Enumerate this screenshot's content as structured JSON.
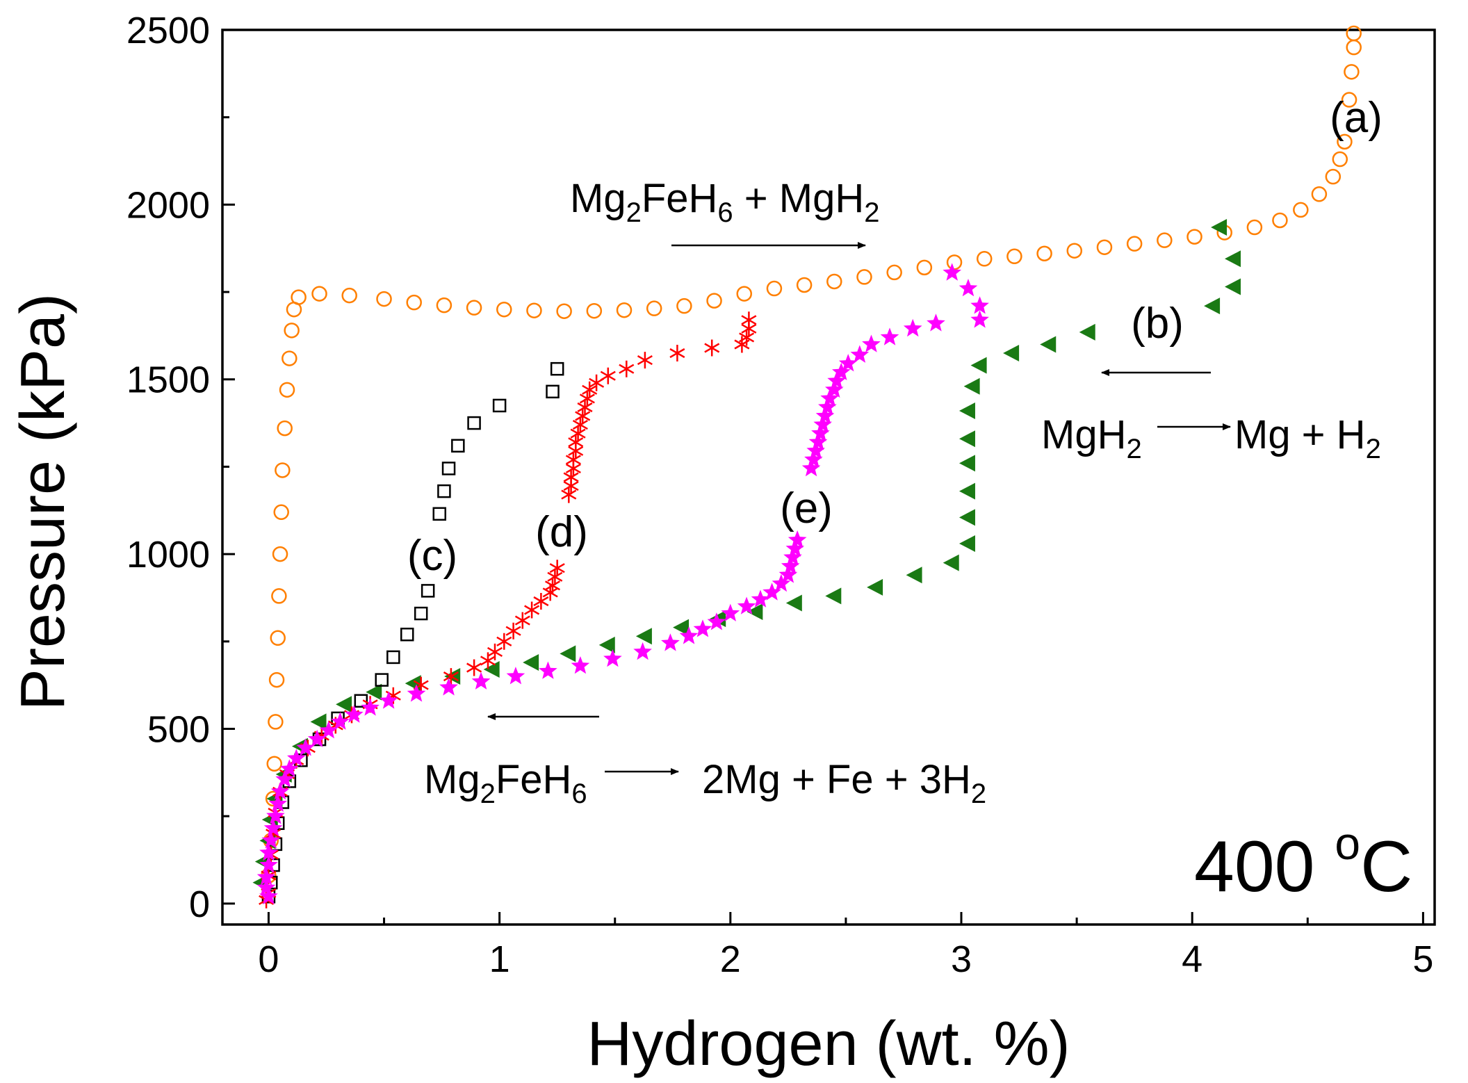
{
  "chart_data": {
    "type": "scatter",
    "xlabel": "Hydrogen (wt. %)",
    "ylabel": "Pressure (kPa)",
    "xlim": [
      -0.2,
      5.05
    ],
    "ylim": [
      -60,
      2500
    ],
    "xticks": [
      0,
      1,
      2,
      3,
      4,
      5
    ],
    "yticks": [
      0,
      500,
      1000,
      1500,
      2000,
      2500
    ],
    "grid": false,
    "temperature": {
      "value": "400 ",
      "sup": "o",
      "unit": "C"
    },
    "series": [
      {
        "name": "(a)",
        "marker": "circle",
        "color": "#ff7f00",
        "filled": false,
        "points": [
          [
            0.0,
            80
          ],
          [
            0.01,
            180
          ],
          [
            0.02,
            300
          ],
          [
            0.025,
            400
          ],
          [
            0.03,
            520
          ],
          [
            0.035,
            640
          ],
          [
            0.04,
            760
          ],
          [
            0.045,
            880
          ],
          [
            0.05,
            1000
          ],
          [
            0.055,
            1120
          ],
          [
            0.06,
            1240
          ],
          [
            0.07,
            1360
          ],
          [
            0.08,
            1470
          ],
          [
            0.09,
            1560
          ],
          [
            0.1,
            1640
          ],
          [
            0.11,
            1700
          ],
          [
            0.13,
            1735
          ],
          [
            0.22,
            1745
          ],
          [
            0.35,
            1740
          ],
          [
            0.5,
            1730
          ],
          [
            0.63,
            1720
          ],
          [
            0.76,
            1712
          ],
          [
            0.89,
            1705
          ],
          [
            1.02,
            1700
          ],
          [
            1.15,
            1697
          ],
          [
            1.28,
            1695
          ],
          [
            1.41,
            1696
          ],
          [
            1.54,
            1698
          ],
          [
            1.67,
            1703
          ],
          [
            1.8,
            1710
          ],
          [
            1.93,
            1725
          ],
          [
            2.06,
            1745
          ],
          [
            2.19,
            1760
          ],
          [
            2.32,
            1770
          ],
          [
            2.45,
            1780
          ],
          [
            2.58,
            1793
          ],
          [
            2.71,
            1806
          ],
          [
            2.84,
            1820
          ],
          [
            2.97,
            1835
          ],
          [
            3.1,
            1845
          ],
          [
            3.23,
            1852
          ],
          [
            3.36,
            1860
          ],
          [
            3.49,
            1868
          ],
          [
            3.62,
            1878
          ],
          [
            3.75,
            1888
          ],
          [
            3.88,
            1898
          ],
          [
            4.01,
            1908
          ],
          [
            4.14,
            1920
          ],
          [
            4.27,
            1935
          ],
          [
            4.38,
            1955
          ],
          [
            4.47,
            1985
          ],
          [
            4.55,
            2030
          ],
          [
            4.61,
            2080
          ],
          [
            4.64,
            2130
          ],
          [
            4.66,
            2180
          ],
          [
            4.68,
            2300
          ],
          [
            4.69,
            2380
          ],
          [
            4.7,
            2450
          ],
          [
            4.7,
            2490
          ]
        ]
      },
      {
        "name": "(b)",
        "marker": "triangle-left",
        "color": "#1a7a14",
        "filled": true,
        "points": [
          [
            4.12,
            1935
          ],
          [
            4.18,
            1845
          ],
          [
            4.18,
            1765
          ],
          [
            4.09,
            1710
          ],
          [
            3.55,
            1635
          ],
          [
            3.38,
            1600
          ],
          [
            3.22,
            1575
          ],
          [
            3.08,
            1540
          ],
          [
            3.05,
            1480
          ],
          [
            3.03,
            1410
          ],
          [
            3.03,
            1330
          ],
          [
            3.03,
            1260
          ],
          [
            3.03,
            1180
          ],
          [
            3.03,
            1105
          ],
          [
            3.03,
            1030
          ],
          [
            2.96,
            975
          ],
          [
            2.8,
            940
          ],
          [
            2.63,
            905
          ],
          [
            2.45,
            880
          ],
          [
            2.28,
            860
          ],
          [
            2.11,
            835
          ],
          [
            1.95,
            815
          ],
          [
            1.79,
            790
          ],
          [
            1.63,
            765
          ],
          [
            1.47,
            740
          ],
          [
            1.3,
            715
          ],
          [
            1.14,
            690
          ],
          [
            0.97,
            670
          ],
          [
            0.8,
            650
          ],
          [
            0.63,
            630
          ],
          [
            0.46,
            605
          ],
          [
            0.33,
            570
          ],
          [
            0.22,
            520
          ],
          [
            0.14,
            450
          ],
          [
            0.07,
            370
          ],
          [
            0.03,
            300
          ],
          [
            0.01,
            240
          ],
          [
            0.0,
            180
          ],
          [
            -0.02,
            120
          ],
          [
            -0.03,
            60
          ]
        ]
      },
      {
        "name": "(c)",
        "marker": "square",
        "color": "#000000",
        "filled": false,
        "points": [
          [
            1.25,
            1530
          ],
          [
            1.23,
            1465
          ],
          [
            1.0,
            1425
          ],
          [
            0.89,
            1375
          ],
          [
            0.82,
            1310
          ],
          [
            0.78,
            1245
          ],
          [
            0.76,
            1180
          ],
          [
            0.74,
            1115
          ],
          [
            0.69,
            895
          ],
          [
            0.66,
            830
          ],
          [
            0.6,
            770
          ],
          [
            0.54,
            705
          ],
          [
            0.49,
            640
          ],
          [
            0.4,
            580
          ],
          [
            0.3,
            530
          ],
          [
            0.22,
            470
          ],
          [
            0.14,
            410
          ],
          [
            0.09,
            350
          ],
          [
            0.06,
            290
          ],
          [
            0.04,
            230
          ],
          [
            0.03,
            170
          ],
          [
            0.02,
            110
          ],
          [
            0.01,
            60
          ],
          [
            0.0,
            20
          ]
        ]
      },
      {
        "name": "(d)",
        "marker": "star6",
        "color": "#ff0000",
        "filled": false,
        "points": [
          [
            2.08,
            1670
          ],
          [
            2.08,
            1645
          ],
          [
            2.07,
            1620
          ],
          [
            2.05,
            1600
          ],
          [
            1.92,
            1590
          ],
          [
            1.77,
            1575
          ],
          [
            1.63,
            1555
          ],
          [
            1.55,
            1530
          ],
          [
            1.47,
            1510
          ],
          [
            1.42,
            1490
          ],
          [
            1.39,
            1470
          ],
          [
            1.38,
            1445
          ],
          [
            1.37,
            1420
          ],
          [
            1.36,
            1395
          ],
          [
            1.35,
            1370
          ],
          [
            1.34,
            1345
          ],
          [
            1.33,
            1320
          ],
          [
            1.33,
            1295
          ],
          [
            1.32,
            1270
          ],
          [
            1.32,
            1245
          ],
          [
            1.31,
            1220
          ],
          [
            1.31,
            1195
          ],
          [
            1.3,
            1170
          ],
          [
            1.25,
            960
          ],
          [
            1.24,
            935
          ],
          [
            1.23,
            910
          ],
          [
            1.22,
            890
          ],
          [
            1.18,
            865
          ],
          [
            1.14,
            840
          ],
          [
            1.1,
            810
          ],
          [
            1.06,
            780
          ],
          [
            1.02,
            750
          ],
          [
            0.98,
            720
          ],
          [
            0.95,
            695
          ],
          [
            0.89,
            675
          ],
          [
            0.79,
            650
          ],
          [
            0.66,
            625
          ],
          [
            0.54,
            595
          ],
          [
            0.44,
            570
          ],
          [
            0.36,
            540
          ],
          [
            0.29,
            510
          ],
          [
            0.23,
            480
          ],
          [
            0.17,
            445
          ],
          [
            0.12,
            410
          ],
          [
            0.08,
            370
          ],
          [
            0.05,
            320
          ],
          [
            0.03,
            260
          ],
          [
            0.02,
            200
          ],
          [
            0.01,
            140
          ],
          [
            0.0,
            80
          ],
          [
            0.0,
            30
          ],
          [
            -0.01,
            10
          ]
        ]
      },
      {
        "name": "(e)",
        "marker": "star5",
        "color": "#ff00ff",
        "filled": true,
        "points": [
          [
            2.96,
            1805
          ],
          [
            3.03,
            1760
          ],
          [
            3.08,
            1710
          ],
          [
            3.08,
            1670
          ],
          [
            2.89,
            1660
          ],
          [
            2.79,
            1645
          ],
          [
            2.69,
            1620
          ],
          [
            2.61,
            1600
          ],
          [
            2.56,
            1570
          ],
          [
            2.51,
            1545
          ],
          [
            2.48,
            1520
          ],
          [
            2.46,
            1495
          ],
          [
            2.45,
            1470
          ],
          [
            2.43,
            1445
          ],
          [
            2.42,
            1420
          ],
          [
            2.41,
            1395
          ],
          [
            2.4,
            1370
          ],
          [
            2.39,
            1345
          ],
          [
            2.38,
            1320
          ],
          [
            2.37,
            1295
          ],
          [
            2.36,
            1270
          ],
          [
            2.35,
            1245
          ],
          [
            2.29,
            1040
          ],
          [
            2.28,
            1015
          ],
          [
            2.27,
            990
          ],
          [
            2.26,
            965
          ],
          [
            2.25,
            940
          ],
          [
            2.22,
            915
          ],
          [
            2.18,
            890
          ],
          [
            2.13,
            870
          ],
          [
            2.07,
            850
          ],
          [
            2.0,
            830
          ],
          [
            1.94,
            805
          ],
          [
            1.88,
            785
          ],
          [
            1.82,
            765
          ],
          [
            1.74,
            745
          ],
          [
            1.62,
            720
          ],
          [
            1.49,
            700
          ],
          [
            1.35,
            680
          ],
          [
            1.21,
            665
          ],
          [
            1.07,
            650
          ],
          [
            0.92,
            635
          ],
          [
            0.78,
            618
          ],
          [
            0.64,
            600
          ],
          [
            0.52,
            580
          ],
          [
            0.44,
            560
          ],
          [
            0.37,
            540
          ],
          [
            0.31,
            520
          ],
          [
            0.26,
            495
          ],
          [
            0.21,
            470
          ],
          [
            0.16,
            445
          ],
          [
            0.12,
            415
          ],
          [
            0.09,
            385
          ],
          [
            0.07,
            355
          ],
          [
            0.05,
            320
          ],
          [
            0.04,
            285
          ],
          [
            0.03,
            250
          ],
          [
            0.02,
            215
          ],
          [
            0.01,
            180
          ],
          [
            0.0,
            145
          ],
          [
            0.0,
            110
          ],
          [
            -0.01,
            75
          ],
          [
            -0.01,
            45
          ],
          [
            0.0,
            20
          ]
        ]
      }
    ],
    "annotations": {
      "a": "(a)",
      "b": "(b)",
      "c": "(c)",
      "d": "(d)",
      "e": "(e)",
      "mg2feh6_mgh2": {
        "parts": [
          "Mg",
          "2",
          "FeH",
          "6",
          " + MgH",
          "2"
        ]
      },
      "mgh2_reaction": {
        "left": [
          "MgH",
          "2"
        ],
        "right": [
          "Mg + H",
          "2"
        ]
      },
      "mg2feh6_reaction": {
        "left": [
          "Mg",
          "2",
          "FeH",
          "6"
        ],
        "right": [
          "2Mg + Fe + 3H",
          "2"
        ]
      }
    }
  }
}
